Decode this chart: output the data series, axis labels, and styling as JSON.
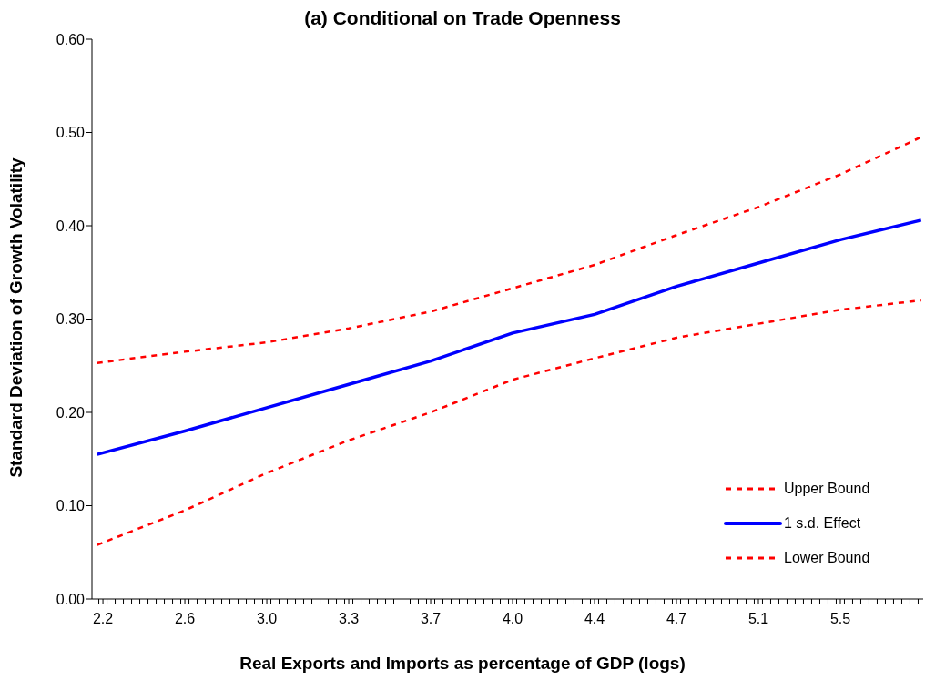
{
  "chart_data": {
    "type": "line",
    "title": "(a) Conditional on Trade Openness",
    "xlabel": "Real Exports and Imports as percentage of GDP (logs)",
    "ylabel": "Standard Deviation of Growth Volatility",
    "x": [
      2.21,
      2.593,
      2.951,
      3.309,
      3.667,
      4.025,
      4.383,
      4.741,
      5.099,
      5.457,
      5.81
    ],
    "series": [
      {
        "name": "Upper Bound",
        "color": "#ff0000",
        "line_style": "dashed",
        "values": [
          0.253,
          0.265,
          0.275,
          0.29,
          0.308,
          0.333,
          0.358,
          0.39,
          0.42,
          0.455,
          0.495
        ]
      },
      {
        "name": "1 s.d. Effect",
        "color": "#0000ff",
        "line_style": "solid",
        "values": [
          0.155,
          0.18,
          0.205,
          0.23,
          0.255,
          0.285,
          0.305,
          0.335,
          0.36,
          0.385,
          0.406
        ]
      },
      {
        "name": "Lower Bound",
        "color": "#ff0000",
        "line_style": "dashed",
        "values": [
          0.058,
          0.095,
          0.135,
          0.17,
          0.2,
          0.235,
          0.258,
          0.28,
          0.295,
          0.31,
          0.32
        ]
      }
    ],
    "xlim": [
      2.187,
      5.819
    ],
    "xticks": [
      {
        "value": 2.235,
        "label": "2.2"
      },
      {
        "value": 2.593,
        "label": "2.6"
      },
      {
        "value": 2.951,
        "label": "3.0"
      },
      {
        "value": 3.309,
        "label": "3.3"
      },
      {
        "value": 3.667,
        "label": "3.7"
      },
      {
        "value": 4.025,
        "label": "4.0"
      },
      {
        "value": 4.383,
        "label": "4.4"
      },
      {
        "value": 4.741,
        "label": "4.7"
      },
      {
        "value": 5.099,
        "label": "5.1"
      },
      {
        "value": 5.457,
        "label": "5.5"
      },
      {
        "value": 2.217,
        "label": null
      },
      {
        "value": 2.2528,
        "label": null
      },
      {
        "value": 2.2886,
        "label": null
      },
      {
        "value": 2.3244,
        "label": null
      },
      {
        "value": 2.3602,
        "label": null
      },
      {
        "value": 2.396,
        "label": null
      },
      {
        "value": 2.4318,
        "label": null
      },
      {
        "value": 2.4676,
        "label": null
      },
      {
        "value": 2.5034,
        "label": null
      },
      {
        "value": 2.5392,
        "label": null
      },
      {
        "value": 2.575,
        "label": null
      },
      {
        "value": 2.6108,
        "label": null
      },
      {
        "value": 2.6466,
        "label": null
      },
      {
        "value": 2.6824,
        "label": null
      },
      {
        "value": 2.7182,
        "label": null
      },
      {
        "value": 2.754,
        "label": null
      },
      {
        "value": 2.7898,
        "label": null
      },
      {
        "value": 2.8256,
        "label": null
      },
      {
        "value": 2.8614,
        "label": null
      },
      {
        "value": 2.8972,
        "label": null
      },
      {
        "value": 2.933,
        "label": null
      },
      {
        "value": 2.9688,
        "label": null
      },
      {
        "value": 3.0046,
        "label": null
      },
      {
        "value": 3.0404,
        "label": null
      },
      {
        "value": 3.0762,
        "label": null
      },
      {
        "value": 3.112,
        "label": null
      },
      {
        "value": 3.1478,
        "label": null
      },
      {
        "value": 3.1836,
        "label": null
      },
      {
        "value": 3.2194,
        "label": null
      },
      {
        "value": 3.2552,
        "label": null
      },
      {
        "value": 3.291,
        "label": null
      },
      {
        "value": 3.3268,
        "label": null
      },
      {
        "value": 3.3626,
        "label": null
      },
      {
        "value": 3.3984,
        "label": null
      },
      {
        "value": 3.4342,
        "label": null
      },
      {
        "value": 3.47,
        "label": null
      },
      {
        "value": 3.5058,
        "label": null
      },
      {
        "value": 3.5416,
        "label": null
      },
      {
        "value": 3.5774,
        "label": null
      },
      {
        "value": 3.6132,
        "label": null
      },
      {
        "value": 3.649,
        "label": null
      },
      {
        "value": 3.6848,
        "label": null
      },
      {
        "value": 3.7206,
        "label": null
      },
      {
        "value": 3.7564,
        "label": null
      },
      {
        "value": 3.7922,
        "label": null
      },
      {
        "value": 3.828,
        "label": null
      },
      {
        "value": 3.8638,
        "label": null
      },
      {
        "value": 3.8996,
        "label": null
      },
      {
        "value": 3.9354,
        "label": null
      },
      {
        "value": 3.9712,
        "label": null
      },
      {
        "value": 4.007,
        "label": null
      },
      {
        "value": 4.0428,
        "label": null
      },
      {
        "value": 4.0786,
        "label": null
      },
      {
        "value": 4.1144,
        "label": null
      },
      {
        "value": 4.1502,
        "label": null
      },
      {
        "value": 4.186,
        "label": null
      },
      {
        "value": 4.2218,
        "label": null
      },
      {
        "value": 4.2576,
        "label": null
      },
      {
        "value": 4.2934,
        "label": null
      },
      {
        "value": 4.3292,
        "label": null
      },
      {
        "value": 4.365,
        "label": null
      },
      {
        "value": 4.4008,
        "label": null
      },
      {
        "value": 4.4366,
        "label": null
      },
      {
        "value": 4.4724,
        "label": null
      },
      {
        "value": 4.5082,
        "label": null
      },
      {
        "value": 4.544,
        "label": null
      },
      {
        "value": 4.5798,
        "label": null
      },
      {
        "value": 4.6156,
        "label": null
      },
      {
        "value": 4.6514,
        "label": null
      },
      {
        "value": 4.6872,
        "label": null
      },
      {
        "value": 4.723,
        "label": null
      },
      {
        "value": 4.7588,
        "label": null
      },
      {
        "value": 4.7946,
        "label": null
      },
      {
        "value": 4.8304,
        "label": null
      },
      {
        "value": 4.8662,
        "label": null
      },
      {
        "value": 4.902,
        "label": null
      },
      {
        "value": 4.9378,
        "label": null
      },
      {
        "value": 4.9736,
        "label": null
      },
      {
        "value": 5.0094,
        "label": null
      },
      {
        "value": 5.0452,
        "label": null
      },
      {
        "value": 5.081,
        "label": null
      },
      {
        "value": 5.1168,
        "label": null
      },
      {
        "value": 5.1526,
        "label": null
      },
      {
        "value": 5.1884,
        "label": null
      },
      {
        "value": 5.2242,
        "label": null
      },
      {
        "value": 5.26,
        "label": null
      },
      {
        "value": 5.2958,
        "label": null
      },
      {
        "value": 5.3316,
        "label": null
      },
      {
        "value": 5.3674,
        "label": null
      },
      {
        "value": 5.4032,
        "label": null
      },
      {
        "value": 5.439,
        "label": null
      },
      {
        "value": 5.4748,
        "label": null
      },
      {
        "value": 5.5106,
        "label": null
      },
      {
        "value": 5.5464,
        "label": null
      },
      {
        "value": 5.5822,
        "label": null
      },
      {
        "value": 5.618,
        "label": null
      },
      {
        "value": 5.6538,
        "label": null
      },
      {
        "value": 5.6896,
        "label": null
      },
      {
        "value": 5.7254,
        "label": null
      },
      {
        "value": 5.7612,
        "label": null
      },
      {
        "value": 5.797,
        "label": null
      }
    ],
    "ylim": [
      0,
      0.6
    ],
    "yticks": [
      {
        "value": 0,
        "label": "0.00"
      },
      {
        "value": 0.1,
        "label": "0.10"
      },
      {
        "value": 0.2,
        "label": "0.20"
      },
      {
        "value": 0.3,
        "label": "0.30"
      },
      {
        "value": 0.4,
        "label": "0.40"
      },
      {
        "value": 0.5,
        "label": "0.50"
      },
      {
        "value": 0.6,
        "label": "0.60"
      }
    ],
    "grid": false,
    "legend": "bottom right",
    "marker": "none"
  }
}
